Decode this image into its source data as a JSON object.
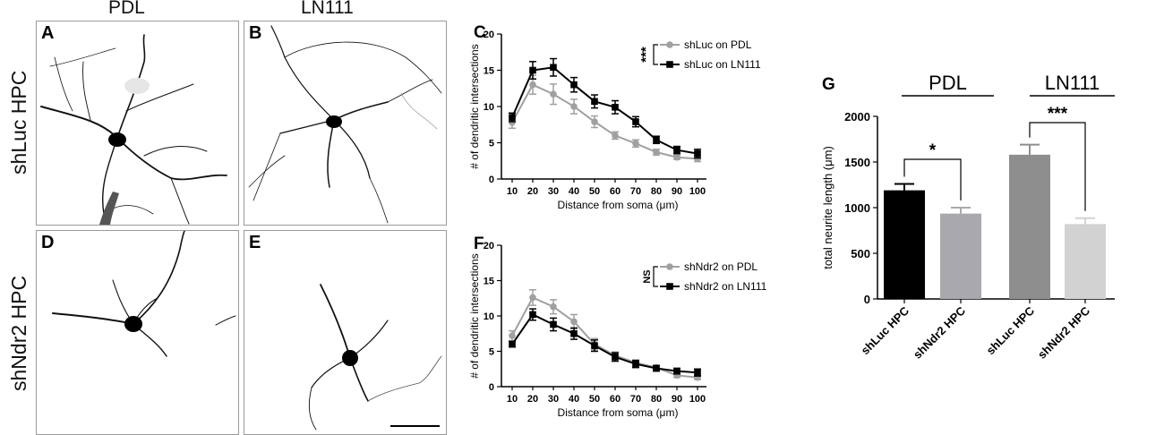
{
  "headers": {
    "pdl": "PDL",
    "ln111": "LN111"
  },
  "row_labels": {
    "top": "shLuc HPC",
    "bottom": "shNdr2 HPC"
  },
  "panels": {
    "A": "A",
    "B": "B",
    "D": "D",
    "E": "E"
  },
  "colors": {
    "gray_series": "#a0a0a0",
    "black_series": "#000000",
    "bar_black": "#000000",
    "bar_gray1": "#a9a9ad",
    "bar_gray2": "#8e8e8e",
    "bar_gray3": "#d2d2d2"
  },
  "chart_data": [
    {
      "panel": "C",
      "type": "line",
      "ylabel": "# of dendritic intersections",
      "xlabel": "Distance from soma (μm)",
      "ylim": [
        0,
        20
      ],
      "yticks": [
        "0",
        "5",
        "10",
        "15",
        "20"
      ],
      "x": [
        10,
        20,
        30,
        40,
        50,
        60,
        70,
        80,
        90,
        100
      ],
      "xtick_labels": [
        "10",
        "20",
        "30",
        "40",
        "50",
        "60",
        "70",
        "80",
        "90",
        "100"
      ],
      "significance": "***",
      "series": [
        {
          "name": "shLuc on PDL",
          "color": "gray",
          "values": [
            7.8,
            13.0,
            11.7,
            10.0,
            7.9,
            6.0,
            4.9,
            3.7,
            3.0,
            2.8
          ],
          "errors": [
            0.8,
            1.3,
            1.4,
            1.0,
            0.8,
            0.5,
            0.5,
            0.4,
            0.3,
            0.4
          ]
        },
        {
          "name": "shLuc on LN111",
          "color": "black",
          "values": [
            8.5,
            15.0,
            15.4,
            13.0,
            10.7,
            9.9,
            7.9,
            5.4,
            4.0,
            3.5
          ],
          "errors": [
            0.6,
            1.2,
            1.2,
            1.0,
            0.9,
            0.9,
            0.7,
            0.5,
            0.5,
            0.6
          ]
        }
      ]
    },
    {
      "panel": "F",
      "type": "line",
      "ylabel": "# of dendritic intersections",
      "xlabel": "Distance from soma (μm)",
      "ylim": [
        0,
        20
      ],
      "yticks": [
        "0",
        "5",
        "10",
        "15",
        "20"
      ],
      "x": [
        10,
        20,
        30,
        40,
        50,
        60,
        70,
        80,
        90,
        100
      ],
      "xtick_labels": [
        "10",
        "20",
        "30",
        "40",
        "50",
        "60",
        "70",
        "80",
        "90",
        "100"
      ],
      "significance": "NS",
      "series": [
        {
          "name": "shNdr2 on PDL",
          "color": "gray",
          "values": [
            7.2,
            12.6,
            11.3,
            9.2,
            6.0,
            4.4,
            3.4,
            2.7,
            1.6,
            1.3
          ],
          "errors": [
            0.7,
            1.1,
            1.0,
            1.0,
            0.8,
            0.5,
            0.4,
            0.3,
            0.3,
            0.3
          ]
        },
        {
          "name": "shNdr2 on LN111",
          "color": "black",
          "values": [
            6.0,
            10.2,
            8.8,
            7.5,
            5.8,
            4.2,
            3.2,
            2.6,
            2.2,
            2.0
          ],
          "errors": [
            0.4,
            0.8,
            0.9,
            0.8,
            0.8,
            0.6,
            0.5,
            0.4,
            0.4,
            0.5
          ]
        }
      ]
    },
    {
      "panel": "G",
      "type": "bar",
      "ylabel": "total neurite length (μm)",
      "ylim": [
        0,
        2000
      ],
      "yticks": [
        "0",
        "500",
        "1000",
        "1500",
        "2000"
      ],
      "categories": [
        "shLuc HPC",
        "shNdr2 HPC",
        "shLuc HPC",
        "shNdr2 HPC"
      ],
      "values": [
        1190,
        935,
        1580,
        820
      ],
      "errors": [
        70,
        65,
        110,
        65
      ],
      "groups": [
        "PDL",
        "LN111"
      ],
      "significance": [
        "*",
        "***"
      ]
    }
  ],
  "scale_bar": "scale-bar"
}
